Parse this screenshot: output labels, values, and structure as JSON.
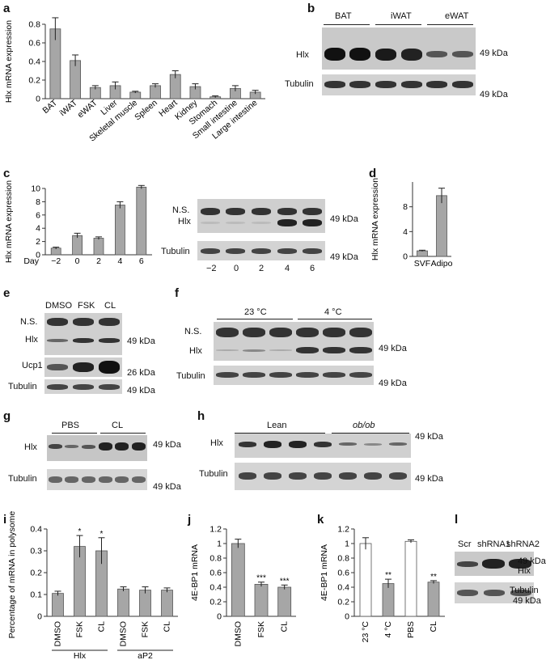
{
  "panels": {
    "a": {
      "letter": "a"
    },
    "b": {
      "letter": "b"
    },
    "c": {
      "letter": "c"
    },
    "d": {
      "letter": "d"
    },
    "e": {
      "letter": "e"
    },
    "f": {
      "letter": "f"
    },
    "g": {
      "letter": "g"
    },
    "h": {
      "letter": "h"
    },
    "i": {
      "letter": "i"
    },
    "j": {
      "letter": "j"
    },
    "k": {
      "letter": "k"
    },
    "l": {
      "letter": "l"
    }
  },
  "blots": {
    "b": {
      "groups": [
        "BAT",
        "iWAT",
        "eWAT"
      ],
      "rows": [
        "Hlx",
        "Tubulin"
      ],
      "kda": [
        "49 kDa",
        "49 kDa"
      ]
    },
    "c": {
      "rows": [
        "N.S.",
        "Hlx",
        "Tubulin"
      ],
      "kda": [
        "49 kDa",
        "49 kDa"
      ],
      "lanes": [
        "−2",
        "0",
        "2",
        "4",
        "6"
      ]
    },
    "e": {
      "lanes": [
        "DMSO",
        "FSK",
        "CL"
      ],
      "rows": [
        "N.S.",
        "Hlx",
        "Ucp1",
        "Tubulin"
      ],
      "kda": [
        "49 kDa",
        "26 kDa",
        "49 kDa"
      ]
    },
    "f": {
      "groups": [
        "23 °C",
        "4 °C"
      ],
      "rows": [
        "N.S.",
        "Hlx",
        "Tubulin"
      ],
      "kda": [
        "49 kDa",
        "49 kDa"
      ]
    },
    "g": {
      "groups": [
        "PBS",
        "CL"
      ],
      "rows": [
        "Hlx",
        "Tubulin"
      ],
      "kda": [
        "49 kDa",
        "49 kDa"
      ]
    },
    "h": {
      "groups": [
        "Lean",
        "ob/ob"
      ],
      "rows": [
        "Hlx",
        "Tubulin"
      ],
      "kda": [
        "49 kDa",
        "49 kDa"
      ]
    },
    "l": {
      "lanes": [
        "Scr",
        "shRNA1",
        "shRNA2"
      ],
      "rows": [
        "Hlx",
        "Tubulin"
      ],
      "kda": [
        "49 kDa",
        "49 kDa"
      ]
    }
  },
  "chart_data": [
    {
      "id": "a",
      "type": "bar",
      "ylabel": "Hlx mRNA expression",
      "ylim": [
        0,
        0.8
      ],
      "yticks": [
        0,
        0.2,
        0.4,
        0.6,
        0.8
      ],
      "categories": [
        "BAT",
        "iWAT",
        "eWAT",
        "Liver",
        "Skeletal muscle",
        "Spleen",
        "Heart",
        "Kidney",
        "Stomach",
        "Small intestine",
        "Large intestine"
      ],
      "values": [
        0.75,
        0.41,
        0.12,
        0.14,
        0.07,
        0.14,
        0.26,
        0.13,
        0.02,
        0.11,
        0.07
      ],
      "errors": [
        0.12,
        0.06,
        0.02,
        0.04,
        0.01,
        0.02,
        0.04,
        0.03,
        0.01,
        0.03,
        0.02
      ]
    },
    {
      "id": "c",
      "type": "bar",
      "ylabel": "Hlx mRNA expression",
      "xprefix": "Day",
      "ylim": [
        0,
        10
      ],
      "yticks": [
        0,
        2,
        4,
        6,
        8,
        10
      ],
      "categories": [
        "−2",
        "0",
        "2",
        "4",
        "6"
      ],
      "values": [
        1.0,
        2.9,
        2.5,
        7.5,
        10.2
      ],
      "errors": [
        0.15,
        0.35,
        0.2,
        0.5,
        0.25
      ]
    },
    {
      "id": "d",
      "type": "bar",
      "ylabel": "Hlx mRNA expression",
      "ylim": [
        0,
        12
      ],
      "yticks": [
        0,
        4,
        8
      ],
      "categories": [
        "SVF",
        "Adipo"
      ],
      "values": [
        0.9,
        9.8
      ],
      "errors": [
        0.1,
        1.2
      ]
    },
    {
      "id": "i",
      "type": "bar",
      "ylabel": "Percentage of mRNA in polysomes",
      "ylim": [
        0,
        0.4
      ],
      "yticks": [
        0,
        0.1,
        0.2,
        0.3,
        0.4
      ],
      "categories": [
        "DMSO",
        "FSK",
        "CL",
        "DMSO",
        "FSK",
        "CL"
      ],
      "values": [
        0.105,
        0.32,
        0.3,
        0.125,
        0.12,
        0.12
      ],
      "errors": [
        0.01,
        0.05,
        0.06,
        0.01,
        0.015,
        0.01
      ],
      "sig": [
        "",
        "*",
        "*",
        "",
        "",
        ""
      ],
      "groups": [
        "Hlx",
        "aP2"
      ]
    },
    {
      "id": "j",
      "type": "bar",
      "ylabel": "4E-BP1 mRNA",
      "ylim": [
        0,
        1.2
      ],
      "yticks": [
        0,
        0.2,
        0.4,
        0.6,
        0.8,
        1,
        1.2
      ],
      "categories": [
        "DMSO",
        "FSK",
        "CL"
      ],
      "values": [
        1.0,
        0.44,
        0.4
      ],
      "errors": [
        0.06,
        0.03,
        0.03
      ],
      "sig": [
        "",
        "***",
        "***"
      ]
    },
    {
      "id": "k",
      "type": "bar",
      "ylabel": "4E-BP1 mRNA",
      "ylim": [
        0,
        1.2
      ],
      "yticks": [
        0,
        0.2,
        0.4,
        0.6,
        0.8,
        1,
        1.2
      ],
      "categories": [
        "23 °C",
        "4 °C",
        "PBS",
        "CL"
      ],
      "values": [
        1.0,
        0.45,
        1.03,
        0.47
      ],
      "errors": [
        0.08,
        0.06,
        0.02,
        0.02
      ],
      "fills": [
        "#ffffff",
        "#a6a6a6",
        "#ffffff",
        "#a6a6a6"
      ],
      "sig": [
        "",
        "**",
        "",
        "**"
      ]
    }
  ]
}
